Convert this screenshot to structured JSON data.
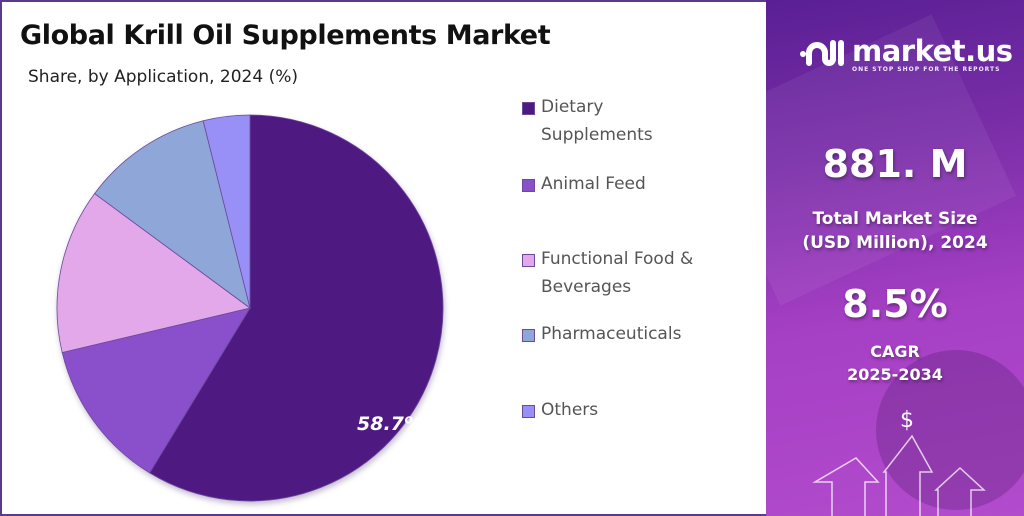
{
  "header": {
    "title": "Global Krill Oil Supplements Market",
    "subtitle": "Share, by Application, 2024 (%)"
  },
  "chart_data": {
    "type": "pie",
    "title": "Global Krill Oil Supplements Market",
    "subtitle": "Share, by Application, 2024 (%)",
    "categories": [
      "Dietary Supplements",
      "Animal Feed",
      "Functional Food & Beverages",
      "Pharmaceuticals",
      "Others"
    ],
    "values": [
      58.7,
      12.6,
      13.8,
      11.0,
      3.9
    ],
    "colors": [
      "#4e1a82",
      "#8a4fcb",
      "#e2a8ea",
      "#8ea6d8",
      "#9890f6"
    ],
    "data_labels": [
      "58.7%",
      "",
      "",
      "",
      ""
    ],
    "start_angle_deg": 0,
    "direction": "clockwise",
    "legend_position": "right"
  },
  "pie": {
    "label": "58.7%"
  },
  "legend": {
    "items": [
      {
        "line1": "Dietary",
        "line2": "Supplements",
        "color": "#4e1a82"
      },
      {
        "line1": "Animal Feed",
        "line2": "",
        "color": "#8a4fcb"
      },
      {
        "line1": "Functional Food &",
        "line2": "Beverages",
        "color": "#e2a8ea"
      },
      {
        "line1": "Pharmaceuticals",
        "line2": "",
        "color": "#8ea6d8"
      },
      {
        "line1": "Others",
        "line2": "",
        "color": "#9890f6"
      }
    ]
  },
  "sidebar": {
    "logo_text": "market.us",
    "tagline": "ONE STOP SHOP FOR THE REPORTS",
    "market_size_value": "881. M",
    "market_size_label_1": "Total Market Size",
    "market_size_label_2": "(USD Million), 2024",
    "cagr_value": "8.5%",
    "cagr_label_1": "CAGR",
    "cagr_label_2": "2025-2034",
    "dollar_symbol": "$"
  }
}
